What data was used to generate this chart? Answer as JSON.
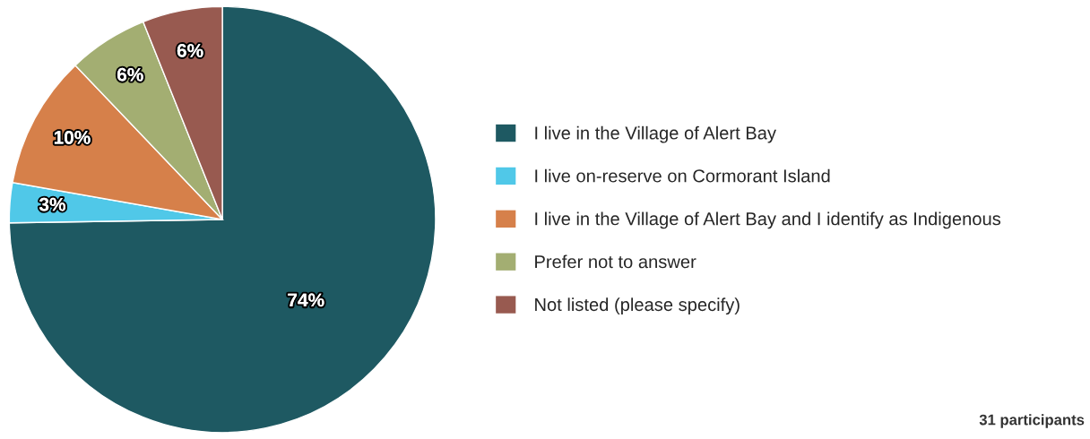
{
  "chart_data": {
    "type": "pie",
    "categories": [
      "I live in the Village of Alert Bay",
      "I live on-reserve on Cormorant Island",
      "I live in the Village of Alert Bay and I identify as Indigenous",
      "Prefer not to answer",
      "Not listed (please specify)"
    ],
    "values": [
      74,
      3,
      10,
      6,
      6
    ],
    "colors": [
      "#1e5962",
      "#50c8e8",
      "#d6804a",
      "#a3ae72",
      "#985a50"
    ],
    "value_labels": [
      "74%",
      "3%",
      "10%",
      "6%",
      "6%"
    ],
    "legend": "right",
    "annotations": [
      "31 participants"
    ]
  }
}
